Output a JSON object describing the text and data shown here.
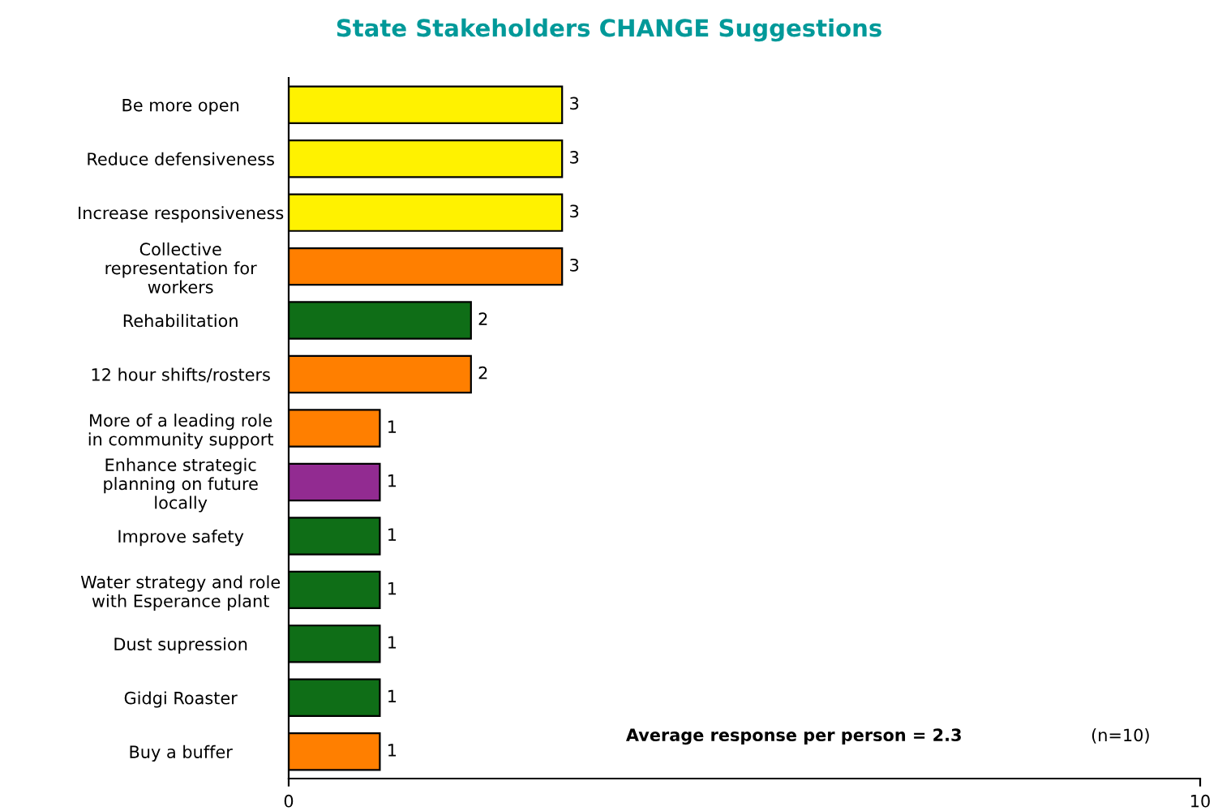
{
  "chart_data": {
    "type": "bar",
    "orientation": "horizontal",
    "title": "State Stakeholders CHANGE Suggestions",
    "categories": [
      "Be more open",
      "Reduce defensiveness",
      "Increase responsiveness",
      "Collective representation for workers",
      "Rehabilitation",
      "12 hour shifts/rosters",
      "More of a leading role in community support",
      "Enhance strategic planning on future locally",
      "Improve safety",
      "Water strategy and role with Esperance plant",
      "Dust supression",
      "Gidgi Roaster",
      "Buy a buffer"
    ],
    "values": [
      3,
      3,
      3,
      3,
      2,
      2,
      1,
      1,
      1,
      1,
      1,
      1,
      1
    ],
    "colors": [
      "#fff200",
      "#fff200",
      "#fff200",
      "#ff7f00",
      "#0f6e17",
      "#ff7f00",
      "#ff7f00",
      "#922b91",
      "#0f6e17",
      "#0f6e17",
      "#0f6e17",
      "#0f6e17",
      "#ff7f00"
    ],
    "xlim": [
      0,
      10
    ],
    "xticks": [
      0,
      10
    ],
    "data_labels": true,
    "grid": false,
    "legend": false,
    "annotations": [
      "Average response per person = 2.3",
      "(n=10)"
    ]
  }
}
